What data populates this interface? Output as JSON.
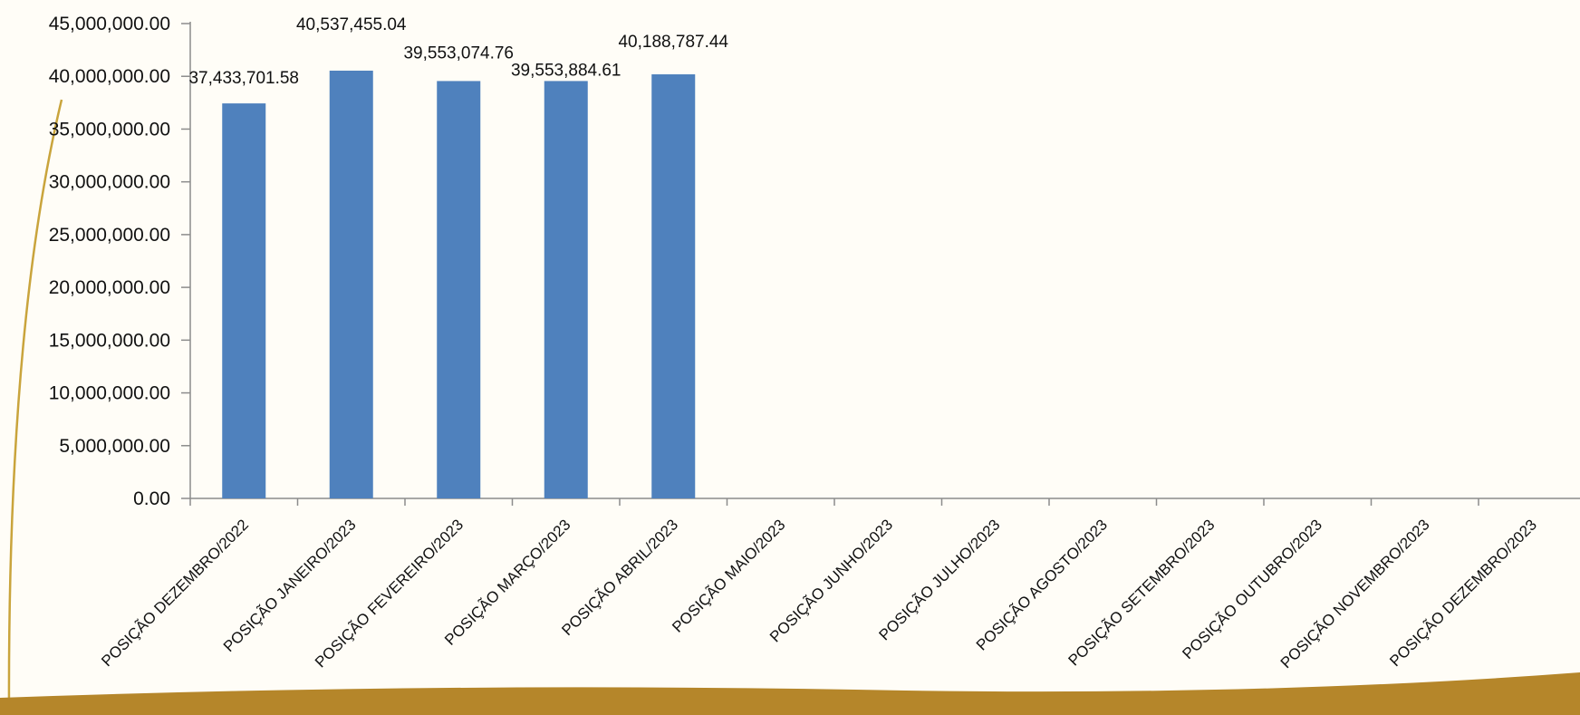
{
  "colors": {
    "bar": "#4f81bd",
    "axis": "#8c8c8c",
    "background": "#fffdf7",
    "frame_gold": "#c9a43c",
    "frame_dark": "#b5862a"
  },
  "chart_data": {
    "type": "bar",
    "title": "",
    "xlabel": "",
    "ylabel": "",
    "ylim": [
      0,
      45000000
    ],
    "y_ticks": [
      0,
      5000000,
      10000000,
      15000000,
      20000000,
      25000000,
      30000000,
      35000000,
      40000000,
      45000000
    ],
    "y_tick_labels": [
      "0.00",
      "5,000,000.00",
      "10,000,000.00",
      "15,000,000.00",
      "20,000,000.00",
      "25,000,000.00",
      "30,000,000.00",
      "35,000,000.00",
      "40,000,000.00",
      "45,000,000.00"
    ],
    "grid": false,
    "legend": "none",
    "categories": [
      "POSIÇÃO DEZEMBRO/2022",
      "POSIÇÃO JANEIRO/2023",
      "POSIÇÃO FEVEREIRO/2023",
      "POSIÇÃO MARÇO/2023",
      "POSIÇÃO ABRIL/2023",
      "POSIÇÃO MAIO/2023",
      "POSIÇÃO JUNHO/2023",
      "POSIÇÃO JULHO/2023",
      "POSIÇÃO AGOSTO/2023",
      "POSIÇÃO SETEMBRO/2023",
      "POSIÇÃO OUTUBRO/2023",
      "POSIÇÃO NOVEMBRO/2023",
      "POSIÇÃO DEZEMBRO/2023"
    ],
    "values": [
      37433701.58,
      40537455.04,
      39553074.76,
      39553884.61,
      40188787.44,
      null,
      null,
      null,
      null,
      null,
      null,
      null,
      null
    ],
    "data_labels": [
      "37,433,701.58",
      "40,537,455.04",
      "39,553,074.76",
      "39,553,884.61",
      "40,188,787.44",
      "",
      "",
      "",
      "",
      "",
      "",
      "",
      ""
    ]
  }
}
